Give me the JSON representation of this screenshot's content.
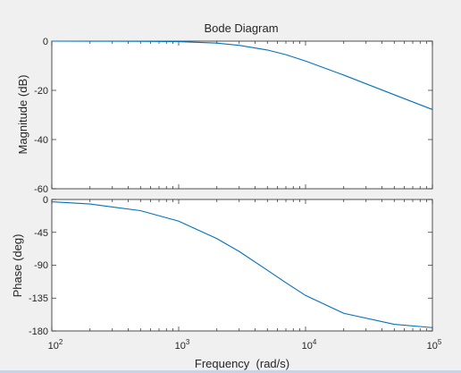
{
  "chart_data": {
    "type": "line",
    "title": "Bode Diagram",
    "xlabel": "Frequency  (rad/s)",
    "x_scale": "log",
    "xlim": [
      100,
      100000
    ],
    "x_tick_labels": [
      {
        "base": "10",
        "exp": "2"
      },
      {
        "base": "10",
        "exp": "3"
      },
      {
        "base": "10",
        "exp": "4"
      },
      {
        "base": "10",
        "exp": "5"
      }
    ],
    "series_color": "#0072bd",
    "panels": [
      {
        "name": "magnitude",
        "ylabel": "Magnitude (dB)",
        "ylim": [
          -60,
          0
        ],
        "yticks": [
          "0",
          "-20",
          "-40",
          "-60"
        ],
        "x": [
          100,
          200,
          500,
          1000,
          2000,
          3000,
          5000,
          7000,
          10000,
          20000,
          50000,
          100000
        ],
        "y": [
          0,
          -0.01,
          -0.05,
          -0.2,
          -0.8,
          -1.7,
          -3.6,
          -5.5,
          -8.1,
          -13.8,
          -21.8,
          -27.8
        ]
      },
      {
        "name": "phase",
        "ylabel": "Phase (deg)",
        "ylim": [
          -180,
          0
        ],
        "yticks": [
          "0",
          "-45",
          "-90",
          "-135",
          "-180"
        ],
        "x": [
          100,
          200,
          500,
          1000,
          2000,
          3000,
          5000,
          7000,
          10000,
          20000,
          50000,
          100000
        ],
        "y": [
          -3.1,
          -6.2,
          -15.3,
          -29.7,
          -53.6,
          -71.2,
          -96.8,
          -114.0,
          -131.4,
          -155.8,
          -170.9,
          -175.4
        ]
      }
    ]
  }
}
